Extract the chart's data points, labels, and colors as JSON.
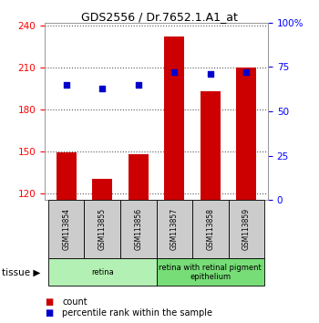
{
  "title": "GDS2556 / Dr.7652.1.A1_at",
  "samples": [
    "GSM113854",
    "GSM113855",
    "GSM113856",
    "GSM113857",
    "GSM113858",
    "GSM113859"
  ],
  "counts": [
    149,
    130,
    148,
    232,
    193,
    210
  ],
  "percentiles": [
    65,
    63,
    65,
    72,
    71,
    72
  ],
  "ylim_left": [
    115,
    242
  ],
  "ylim_right": [
    0,
    100
  ],
  "yticks_left": [
    120,
    150,
    180,
    210,
    240
  ],
  "yticks_right": [
    0,
    25,
    50,
    75,
    100
  ],
  "yticklabels_right": [
    "0",
    "25",
    "50",
    "75",
    "100%"
  ],
  "bar_color": "#cc0000",
  "dot_color": "#0000cc",
  "bar_bottom": 115,
  "tissues": [
    {
      "label": "retina",
      "start": 0,
      "end": 3,
      "color": "#b3f0b3"
    },
    {
      "label": "retina with retinal pigment\nepithelium",
      "start": 3,
      "end": 6,
      "color": "#77dd77"
    }
  ],
  "tissue_label": "tissue",
  "legend_count": "count",
  "legend_percentile": "percentile rank within the sample",
  "grid_color": "#555555",
  "sample_box_color": "#cccccc",
  "background_color": "#ffffff"
}
